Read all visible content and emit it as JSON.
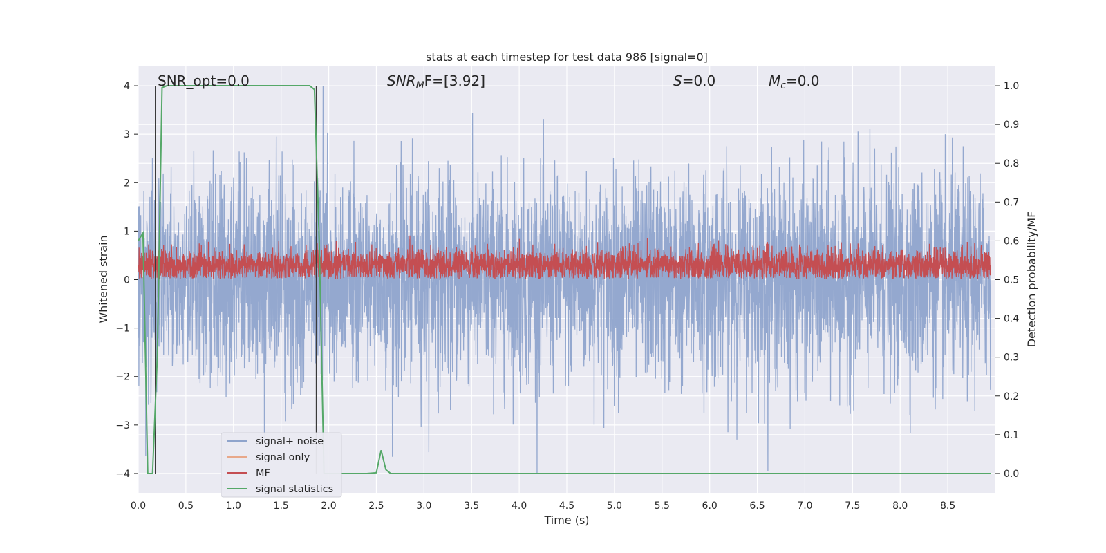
{
  "chart_data": {
    "type": "line",
    "title": "stats at each timestep for test data 986 [signal=0]",
    "xlabel": "Time (s)",
    "ylabel_left": "Whitened strain",
    "ylabel_right": "Detection probability/MF",
    "xlim": [
      0.0,
      9.0
    ],
    "ylim_left": [
      -4.4,
      4.4
    ],
    "ylim_right": [
      -0.05,
      1.05
    ],
    "x_ticks": [
      0.0,
      0.5,
      1.0,
      1.5,
      2.0,
      2.5,
      3.0,
      3.5,
      4.0,
      4.5,
      5.0,
      5.5,
      6.0,
      6.5,
      7.0,
      7.5,
      8.0,
      8.5
    ],
    "x_tick_labels": [
      "0.0",
      "0.5",
      "1.0",
      "1.5",
      "2.0",
      "2.5",
      "3.0",
      "3.5",
      "4.0",
      "4.5",
      "5.0",
      "5.5",
      "6.0",
      "6.5",
      "7.0",
      "7.5",
      "8.0",
      "8.5"
    ],
    "y_left_ticks": [
      4,
      3,
      2,
      1,
      0,
      -1,
      -2,
      -3,
      -4
    ],
    "y_left_tick_labels": [
      "4",
      "3",
      "2",
      "1",
      "0",
      "−1",
      "−2",
      "−3",
      "−4"
    ],
    "y_right_ticks": [
      1.0,
      0.9,
      0.8,
      0.7,
      0.6,
      0.5,
      0.4,
      0.3,
      0.2,
      0.1,
      0.0
    ],
    "y_right_tick_labels": [
      "1.0",
      "0.9",
      "0.8",
      "0.7",
      "0.6",
      "0.5",
      "0.4",
      "0.3",
      "0.2",
      "0.1",
      "0.0"
    ],
    "grid": true,
    "legend_position": "lower-left",
    "annotations": {
      "snr_opt": "SNR_opt=0.0",
      "snr_mf_main": "SNR",
      "snr_mf_sub": "M",
      "snr_mf_rest": "F=[3.92]",
      "s_main": "S",
      "s_rest": "=0.0",
      "mc_main": "M",
      "mc_sub": "c",
      "mc_rest": "=0.0"
    },
    "series": [
      {
        "name": "signal+ noise",
        "axis": "left",
        "color": "#8fa4cc",
        "kind": "noise",
        "amplitude_typical": 1.6,
        "amplitude_max": 4.0
      },
      {
        "name": "signal only",
        "axis": "left",
        "color": "#e8a88a",
        "kind": "flat",
        "values": []
      },
      {
        "name": "MF",
        "axis": "left",
        "color": "#c44e52",
        "kind": "noise-positive",
        "amplitude_typical": 0.55,
        "amplitude_max": 0.95
      },
      {
        "name": "signal statistics",
        "axis": "right",
        "color": "#55a868",
        "x": [
          0.0,
          0.05,
          0.1,
          0.15,
          0.2,
          0.25,
          0.3,
          0.5,
          1.0,
          1.5,
          1.8,
          1.85,
          1.9,
          1.95,
          2.0,
          2.4,
          2.5,
          2.55,
          2.6,
          2.65,
          2.7,
          8.95
        ],
        "values": [
          0.6,
          0.62,
          0.0,
          0.0,
          0.3,
          0.995,
          1.0,
          1.0,
          1.0,
          1.0,
          1.0,
          0.99,
          0.6,
          0.0,
          0.0,
          0.0,
          0.002,
          0.06,
          0.01,
          0.0,
          0.0,
          0.0
        ]
      }
    ],
    "vertical_lines": [
      {
        "x": 0.18,
        "y_from": -4.0,
        "y_to": 4.0,
        "color": "#3a3a3a"
      },
      {
        "x": 1.87,
        "y_from": -4.0,
        "y_to": 4.0,
        "color": "#3a3a3a"
      }
    ]
  }
}
